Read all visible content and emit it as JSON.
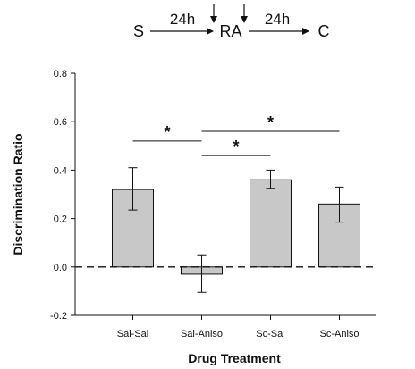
{
  "protocol": {
    "stage_1": "S",
    "interval_1": "24h",
    "stage_2": "RA",
    "interval_2": "24h",
    "stage_3": "C"
  },
  "chart_data": {
    "type": "bar",
    "xlabel": "Drug Treatment",
    "ylabel": "Discrimination Ratio",
    "ylim": [
      -0.2,
      0.8
    ],
    "yticks": [
      -0.2,
      0.0,
      0.2,
      0.4,
      0.6,
      0.8
    ],
    "ytick_labels": [
      "-0.2",
      "0.0",
      "0.2",
      "0.4",
      "0.6",
      "0.8"
    ],
    "categories": [
      "Sal-Sal",
      "Sal-Aniso",
      "Sc-Sal",
      "Sc-Aniso"
    ],
    "values": [
      0.32,
      -0.03,
      0.36,
      0.26
    ],
    "error_low": [
      0.235,
      -0.105,
      0.325,
      0.185
    ],
    "error_high": [
      0.41,
      0.05,
      0.4,
      0.33
    ],
    "reference_line": 0.0,
    "significance": [
      {
        "from": "Sal-Sal",
        "to": "Sal-Aniso",
        "y": 0.52,
        "label": "*"
      },
      {
        "from": "Sal-Aniso",
        "to": "Sc-Aniso",
        "y": 0.56,
        "label": "*"
      },
      {
        "from": "Sal-Aniso",
        "to": "Sc-Sal",
        "y": 0.46,
        "label": "*"
      }
    ],
    "colors": {
      "bar_fill": "#c8c8c8",
      "stroke": "#111111"
    }
  }
}
